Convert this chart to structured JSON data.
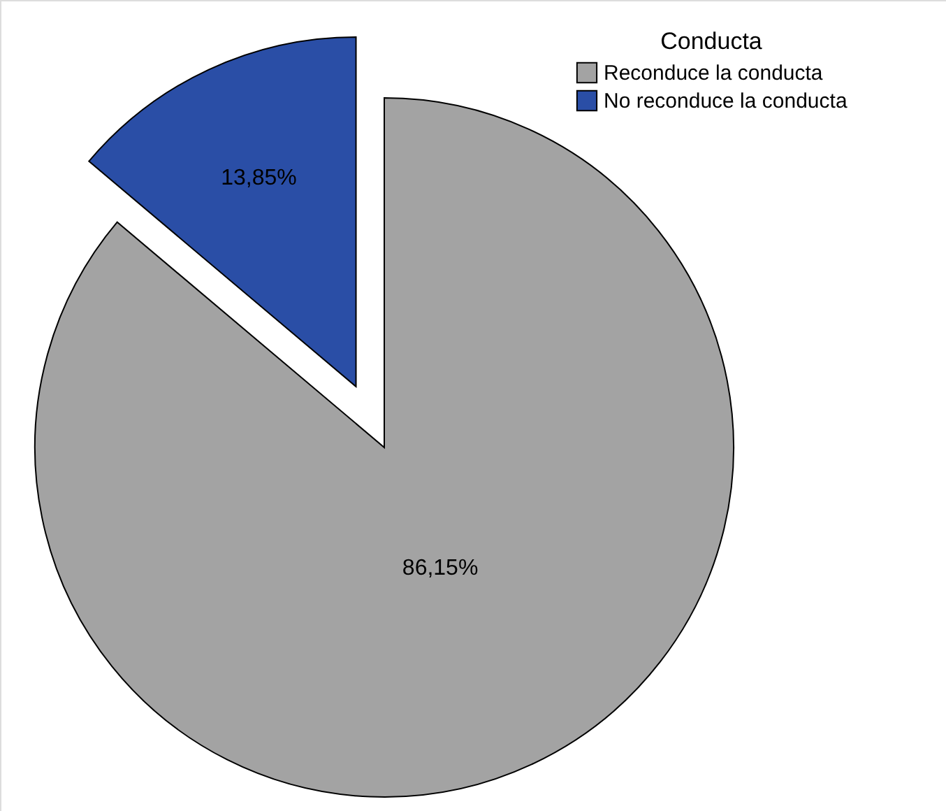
{
  "chart_data": {
    "type": "pie",
    "legend_title": "Conducta",
    "legend": "top right",
    "categories": [
      "Reconduce la conducta",
      "No reconduce la conducta"
    ],
    "values": [
      86.15,
      13.85
    ],
    "colors": [
      "#a3a3a3",
      "#2a4ea6"
    ],
    "value_labels": [
      "86,15%",
      "13,85%"
    ]
  }
}
